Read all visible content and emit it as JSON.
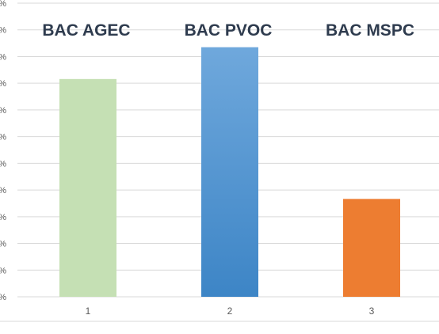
{
  "chart_data": {
    "type": "bar",
    "categories": [
      "1",
      "2",
      "3"
    ],
    "category_labels": [
      "BAC AGEC",
      "BAC PVOC",
      "BAC MSPC"
    ],
    "values": [
      89,
      102,
      40
    ],
    "ylim": [
      0,
      120
    ],
    "y_ticks": [
      "%",
      "%",
      "%",
      "%",
      "%",
      "%",
      "%",
      "%",
      "%",
      "%",
      "%",
      "%"
    ],
    "grid": true,
    "title": "",
    "xlabel": "",
    "ylabel": "",
    "colors": {
      "bar_1": "#c5e0b4",
      "bar_2_top": "#6fa8dc",
      "bar_2_bottom": "#3d85c6",
      "bar_3": "#ed7d31",
      "label_text": "#2e3b4e"
    }
  }
}
